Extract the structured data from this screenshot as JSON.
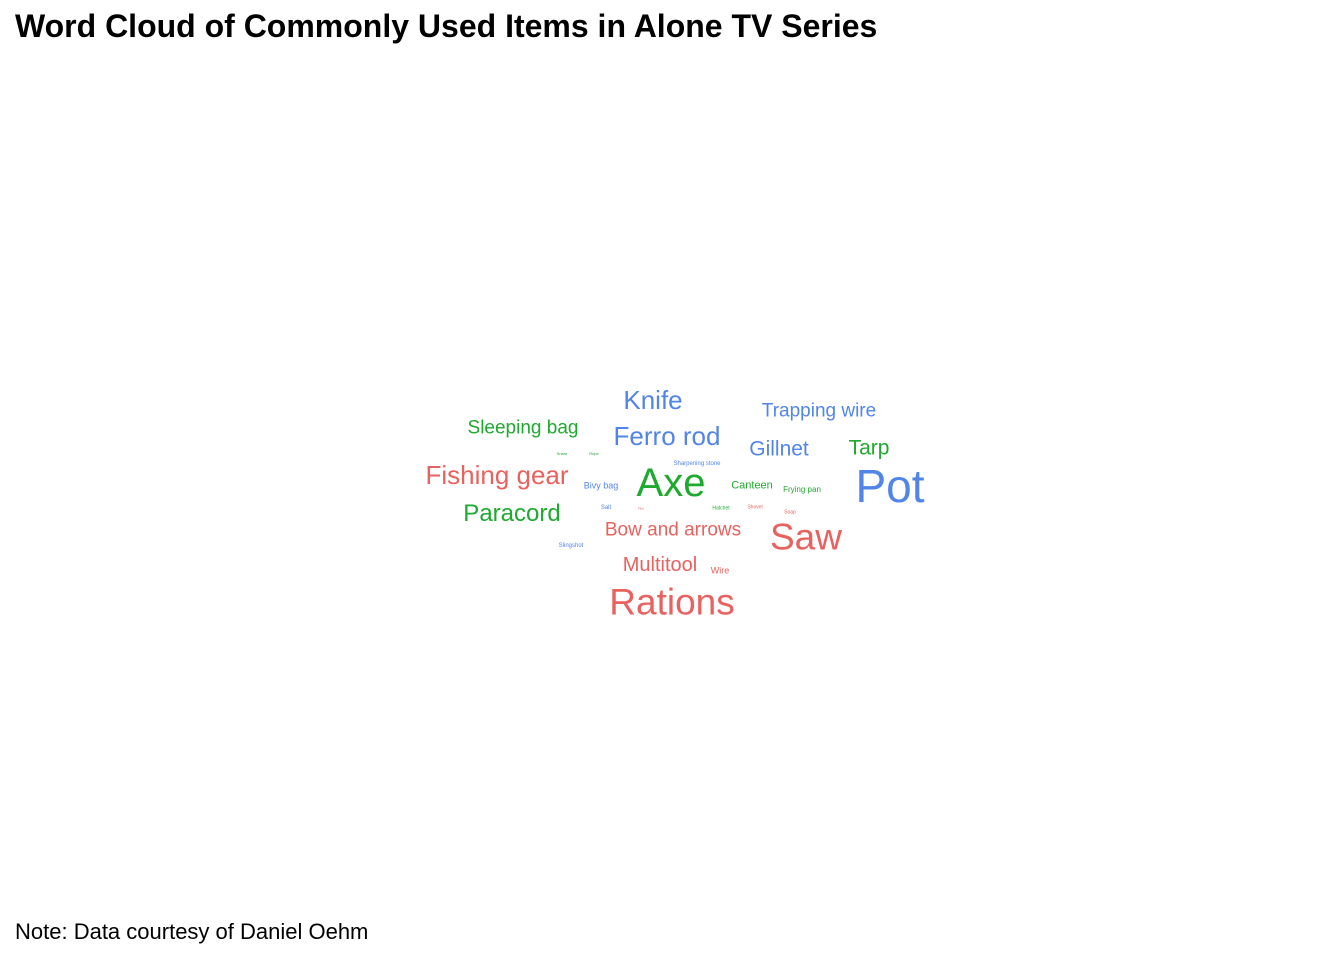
{
  "title": "Word Cloud of Commonly Used Items in Alone TV Series",
  "caption": "Note: Data courtesy of Daniel Oehm",
  "colors": {
    "red": "#E8625F",
    "green": "#1EAA2E",
    "blue": "#5285E8"
  },
  "chart_data": {
    "type": "wordcloud",
    "words": [
      {
        "text": "Pot",
        "color": "blue"
      },
      {
        "text": "Axe",
        "color": "green"
      },
      {
        "text": "Rations",
        "color": "red"
      },
      {
        "text": "Saw",
        "color": "red"
      },
      {
        "text": "Fishing gear",
        "color": "red"
      },
      {
        "text": "Ferro rod",
        "color": "blue"
      },
      {
        "text": "Knife",
        "color": "blue"
      },
      {
        "text": "Paracord",
        "color": "green"
      },
      {
        "text": "Sleeping bag",
        "color": "green"
      },
      {
        "text": "Trapping wire",
        "color": "blue"
      },
      {
        "text": "Gillnet",
        "color": "blue"
      },
      {
        "text": "Tarp",
        "color": "green"
      },
      {
        "text": "Bow and arrows",
        "color": "red"
      },
      {
        "text": "Multitool",
        "color": "red"
      },
      {
        "text": "Canteen",
        "color": "green"
      },
      {
        "text": "Bivy bag",
        "color": "blue"
      },
      {
        "text": "Frying pan",
        "color": "green"
      },
      {
        "text": "Wire",
        "color": "red"
      },
      {
        "text": "Sharpening stone",
        "color": "blue"
      },
      {
        "text": "Slingshot",
        "color": "blue"
      },
      {
        "text": "Salt",
        "color": "blue"
      },
      {
        "text": "Hatchet",
        "color": "green"
      },
      {
        "text": "Shovel",
        "color": "red"
      },
      {
        "text": "Soap",
        "color": "red"
      },
      {
        "text": "Snare",
        "color": "green"
      },
      {
        "text": "Rope",
        "color": "green"
      },
      {
        "text": "Flint",
        "color": "red"
      }
    ]
  }
}
